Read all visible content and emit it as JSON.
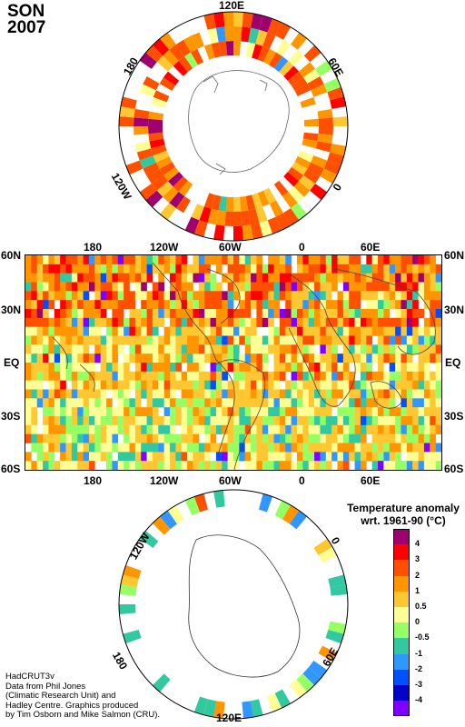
{
  "title": {
    "season": "SON",
    "year": "2007"
  },
  "north_polar_labels": {
    "top": "120E",
    "right": "60E",
    "left": "180",
    "bottom_right": "0",
    "bottom_left": "120W"
  },
  "main_map": {
    "top_lon_labels": [
      "180",
      "120W",
      "60W",
      "0",
      "60E"
    ],
    "bottom_lon_labels": [
      "180",
      "120W",
      "60W",
      "0",
      "60E"
    ],
    "left_lat_labels": [
      "60N",
      "30N",
      "EQ",
      "30S",
      "60S"
    ],
    "right_lat_labels": [
      "60N",
      "30N",
      "EQ",
      "30S",
      "60S"
    ]
  },
  "south_polar_labels": {
    "top_left": "120W",
    "top_right": "0",
    "bottom_left": "180",
    "bottom_right": "60E",
    "bottom": "120E"
  },
  "legend": {
    "title_line1": "Temperature anomaly",
    "title_line2": "wrt. 1961-90  (°C)",
    "labels": [
      "4",
      "3",
      "2",
      "1",
      "0.5",
      "0",
      "-0.5",
      "-1",
      "-2",
      "-3",
      "-4"
    ],
    "colors": [
      "#a0006e",
      "#ff0000",
      "#ff5000",
      "#ff9600",
      "#ffc832",
      "#ffff96",
      "#96ff64",
      "#32c8a0",
      "#3296ff",
      "#0050ff",
      "#0000c8",
      "#8000ff"
    ]
  },
  "credit": {
    "line1": "HadCRUT3v",
    "line2": "Data from Phil Jones",
    "line3": "(Climatic Research Unit) and",
    "line4": "Hadley Centre.  Graphics produced",
    "line5": "by Tim Osborn and Mike Salmon (CRU)."
  }
}
